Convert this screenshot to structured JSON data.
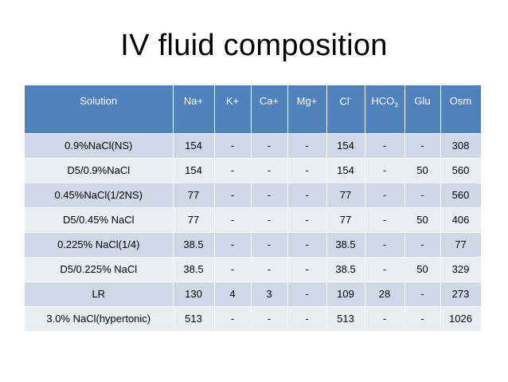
{
  "title": "IV fluid composition",
  "table": {
    "headers": [
      "Solution",
      "Na+",
      "K+",
      "Ca+",
      "Mg+",
      "Cl-",
      "HCO3",
      "Glu",
      "Osm"
    ],
    "rows": [
      [
        "0.9%NaCl(NS)",
        "154",
        "-",
        "-",
        "-",
        "154",
        "-",
        "-",
        "308"
      ],
      [
        "D5/0.9%NaCl",
        "154",
        "-",
        "-",
        "-",
        "154",
        "-",
        "50",
        "560"
      ],
      [
        "0.45%NaCl(1/2NS)",
        "77",
        "-",
        "-",
        "-",
        "77",
        "-",
        "-",
        "560"
      ],
      [
        "D5/0.45% NaCl",
        "77",
        "-",
        "-",
        "-",
        "77",
        "-",
        "50",
        "406"
      ],
      [
        "0.225% NaCl(1/4)",
        "38.5",
        "-",
        "-",
        "-",
        "38.5",
        "-",
        "-",
        "77"
      ],
      [
        "D5/0.225% NaCl",
        "38.5",
        "-",
        "-",
        "-",
        "38.5",
        "-",
        "50",
        "329"
      ],
      [
        "LR",
        "130",
        "4",
        "3",
        "-",
        "109",
        "28",
        "-",
        "273"
      ],
      [
        "3.0% NaCl(hypertonic)",
        "513",
        "-",
        "-",
        "-",
        "513",
        "-",
        "-",
        "1026"
      ]
    ]
  },
  "colors": {
    "header_bg": "#4f81bd",
    "row_band_1": "#d0d8e8",
    "row_band_2": "#e9edf4"
  }
}
